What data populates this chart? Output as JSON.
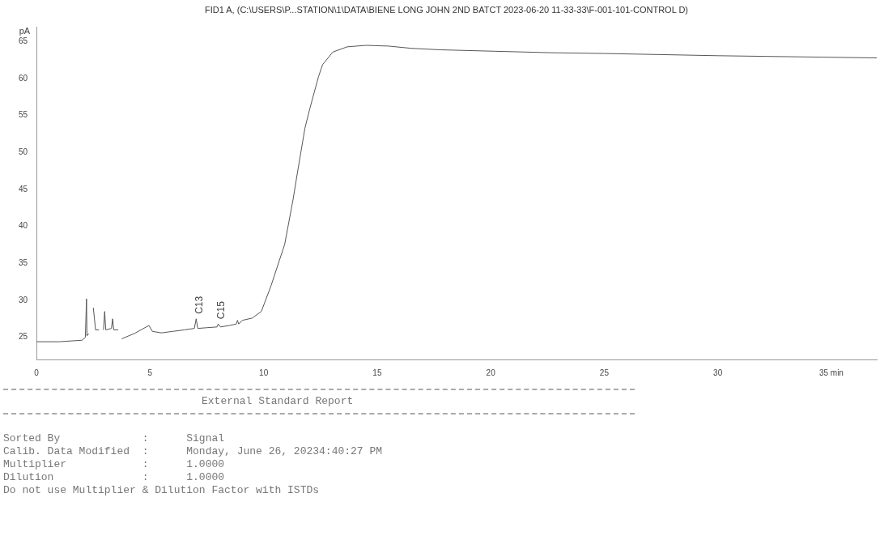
{
  "chart_data": {
    "type": "line",
    "title": "FID1 A, (C:\\USERS\\P...STATION\\1\\DATA\\BIENE LONG JOHN 2ND BATCT 2023-06-20 11-33-33\\F-001-101-CONTROL D)",
    "ylabel": "pA",
    "xlim": [
      0,
      37
    ],
    "ylim": [
      22,
      67
    ],
    "xticks": [
      0,
      5,
      10,
      15,
      20,
      25,
      30,
      {
        "value": 35,
        "label": "35 min"
      }
    ],
    "yticks": [
      25,
      30,
      35,
      40,
      45,
      50,
      55,
      60,
      65
    ],
    "grid": false,
    "legend": false,
    "marker": "none",
    "line_style": "solid",
    "series": [
      {
        "color": "#555555",
        "x": [
          0,
          1,
          2,
          2.15,
          2.2,
          2.22,
          2.3,
          2.35,
          2.45,
          2.5,
          2.6,
          2.75,
          2.8,
          2.9,
          2.95,
          3.0,
          3.05,
          3.3,
          3.35,
          3.4,
          3.6,
          3.7,
          3.75,
          4.3,
          4.95,
          5.1,
          5.5,
          6,
          6.5,
          6.95,
          7.03,
          7.1,
          7.5,
          7.95,
          8.0,
          8.1,
          8.5,
          8.8,
          8.85,
          8.9,
          9.07,
          9.5,
          9.9,
          10.33,
          10.93,
          11.3,
          11.49,
          11.82,
          12.04,
          12.42,
          12.6,
          13.05,
          13.68,
          14.5,
          15.5,
          16.5,
          17.77,
          20.2,
          22.7,
          25,
          30,
          37
        ],
        "values": [
          24.4,
          24.4,
          24.6,
          25,
          30.2,
          25.2,
          25.5,
          null,
          null,
          29,
          26,
          26,
          null,
          null,
          26,
          28.5,
          26,
          26.2,
          27.5,
          26,
          26,
          null,
          24.8,
          25.5,
          26.6,
          25.8,
          25.6,
          25.8,
          26,
          26.2,
          27.5,
          26.2,
          26.3,
          26.4,
          26.8,
          26.4,
          26.6,
          26.8,
          27.3,
          26.8,
          27.3,
          27.6,
          28.5,
          32,
          37.6,
          43.7,
          47.3,
          53.3,
          56,
          60.3,
          61.9,
          63.6,
          64.3,
          64.5,
          64.4,
          64.1,
          63.9,
          63.7,
          63.5,
          63.4,
          63.1,
          62.8
        ]
      }
    ],
    "annotations": [
      {
        "text": "C13",
        "x": 7.03,
        "y": 27.5
      },
      {
        "text": "C15",
        "x": 8.0,
        "y": 26.8
      },
      "External Standard Report",
      "Sorted By             :      Signal",
      "Calib. Data Modified  :      Monday, June 26, 20234:40:27 PM",
      "Multiplier            :      1.0000",
      "Dilution              :      1.0000",
      "Do not use Multiplier & Dilution Factor with ISTDs"
    ]
  }
}
